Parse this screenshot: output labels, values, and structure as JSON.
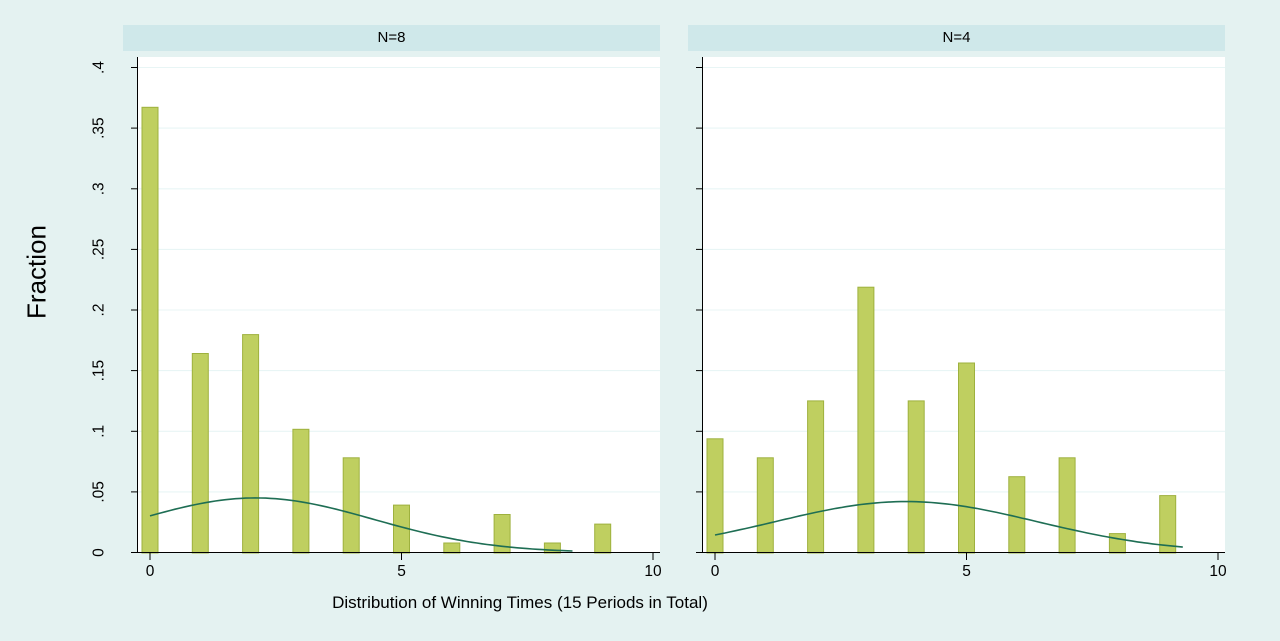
{
  "figure": {
    "background": "#e4f2f1",
    "band_color": "#cfe8ea",
    "plot_background": "#ffffff",
    "grid_color": "#e8f5f5",
    "axis_color": "#000000",
    "bar_fill": "#bfcf60",
    "bar_stroke": "#9eb13e",
    "curve_color": "#1e6e54"
  },
  "chart_data": {
    "type": "bar",
    "title": "",
    "xlabel": "Distribution of Winning Times (15 Periods in Total)",
    "ylabel": "Fraction",
    "ylim": [
      0,
      0.4
    ],
    "yticks": [
      0,
      0.05,
      0.1,
      0.15,
      0.2,
      0.25,
      0.3,
      0.35,
      0.4
    ],
    "ytick_labels": [
      "0",
      ".05",
      ".1",
      ".15",
      ".2",
      ".25",
      ".3",
      ".35",
      ".4"
    ],
    "xticks": [
      0,
      5,
      10
    ],
    "xtick_labels": [
      "0",
      "5",
      "10"
    ],
    "xlim": [
      -0.3,
      10.1
    ],
    "grid": true,
    "legend": false,
    "panels": [
      {
        "title": "N=8",
        "x": [
          0,
          1,
          2,
          3,
          4,
          5,
          6,
          7,
          8,
          9
        ],
        "values": [
          0.3672,
          0.1641,
          0.1797,
          0.1016,
          0.0781,
          0.0391,
          0.0078,
          0.0313,
          0.0078,
          0.0234
        ],
        "curve": {
          "type": "normal-density",
          "peak_x": 2.1,
          "peak_y": 0.045,
          "sd": 2.35,
          "x_start": 0,
          "x_end": 8.4
        }
      },
      {
        "title": "N=4",
        "x": [
          0,
          1,
          2,
          3,
          4,
          5,
          6,
          7,
          8,
          9
        ],
        "values": [
          0.0938,
          0.0781,
          0.125,
          0.2188,
          0.125,
          0.1563,
          0.0625,
          0.0781,
          0.0156,
          0.0469
        ],
        "curve": {
          "type": "normal-density",
          "peak_x": 3.8,
          "peak_y": 0.042,
          "sd": 2.6,
          "x_start": 0,
          "x_end": 9.3
        }
      }
    ]
  }
}
